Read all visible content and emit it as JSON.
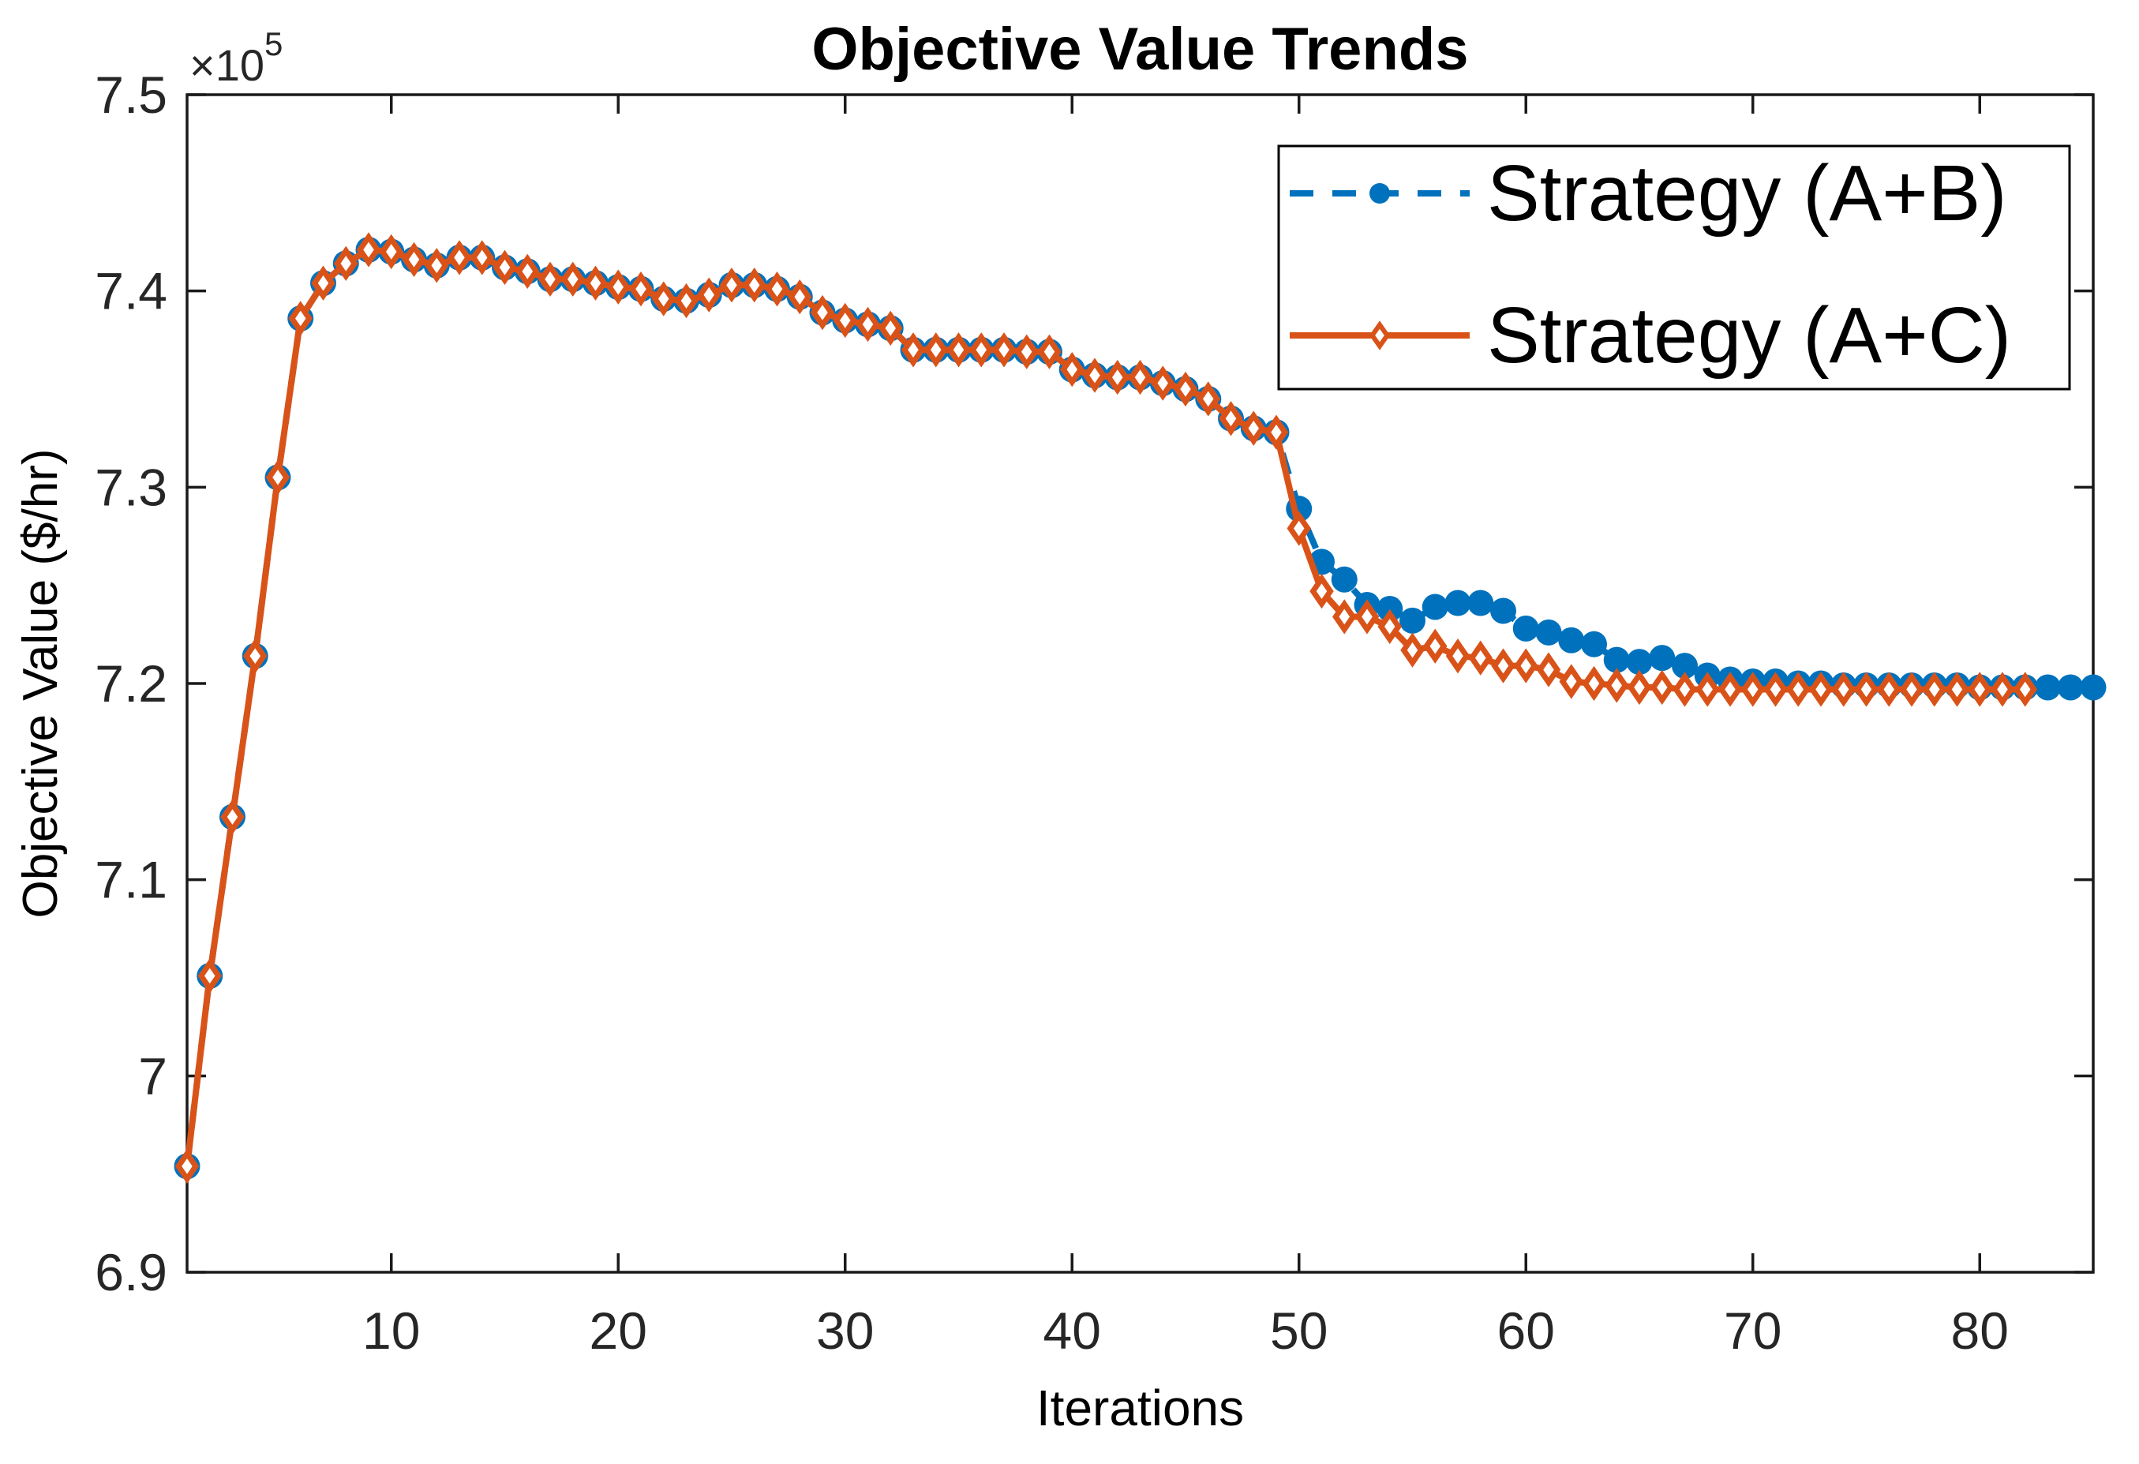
{
  "chart_data": {
    "type": "line",
    "title": "Objective Value Trends",
    "xlabel": "Iterations",
    "ylabel": "Objective Value ($/hr)",
    "axis_offset_label": {
      "base": "×10",
      "exponent": "5"
    },
    "xlim": [
      1,
      85
    ],
    "ylim": [
      690000,
      750000
    ],
    "xticks": [
      10,
      20,
      30,
      40,
      50,
      60,
      70,
      80
    ],
    "xtick_labels": [
      "10",
      "20",
      "30",
      "40",
      "50",
      "60",
      "70",
      "80"
    ],
    "ytick_values": [
      690000,
      700000,
      710000,
      720000,
      730000,
      740000,
      750000
    ],
    "ytick_labels": [
      "6.9",
      "7",
      "7.1",
      "7.2",
      "7.3",
      "7.4",
      "7.5"
    ],
    "grid": false,
    "legend_position": "northeast",
    "axis_color": "#1a1a1a",
    "tick_text_color": "#262626",
    "text_color": "#000000",
    "background_color": "#ffffff",
    "series": [
      {
        "name": "Strategy (A+B)",
        "color": "#0072BD",
        "line_style": "dashed",
        "marker": "circle-filled",
        "x_start": 1,
        "x_step": 1,
        "values": [
          695400,
          705100,
          713200,
          721400,
          730500,
          738600,
          740400,
          741400,
          742100,
          742000,
          741600,
          741300,
          741700,
          741700,
          741200,
          741000,
          740600,
          740600,
          740400,
          740200,
          740100,
          739600,
          739500,
          739800,
          740300,
          740300,
          740100,
          739700,
          738900,
          738500,
          738300,
          738100,
          737000,
          737000,
          737000,
          737000,
          737000,
          736900,
          736900,
          736000,
          735700,
          735600,
          735600,
          735300,
          735000,
          734500,
          733500,
          733000,
          732800,
          728900,
          726200,
          725300,
          724000,
          723800,
          723200,
          723900,
          724100,
          724100,
          723700,
          722800,
          722600,
          722200,
          722000,
          721200,
          721100,
          721300,
          720900,
          720400,
          720200,
          720100,
          720100,
          720000,
          720000,
          719900,
          719900,
          719900,
          719900,
          719900,
          719900,
          719800,
          719800,
          719800,
          719800,
          719800,
          719800
        ]
      },
      {
        "name": "Strategy (A+C)",
        "color": "#D95319",
        "line_style": "solid",
        "marker": "diamond-open",
        "x_start": 1,
        "x_step": 1,
        "values": [
          695400,
          705100,
          713200,
          721400,
          730500,
          738600,
          740400,
          741400,
          742100,
          742000,
          741600,
          741300,
          741700,
          741700,
          741200,
          741000,
          740600,
          740600,
          740400,
          740200,
          740100,
          739600,
          739500,
          739800,
          740300,
          740300,
          740100,
          739700,
          738900,
          738500,
          738300,
          738100,
          737000,
          737000,
          737000,
          737000,
          737000,
          736900,
          736900,
          736000,
          735700,
          735600,
          735600,
          735300,
          735000,
          734500,
          733500,
          733000,
          732800,
          727900,
          724700,
          723400,
          723400,
          722900,
          721700,
          721900,
          721400,
          721300,
          720900,
          720900,
          720700,
          720100,
          720000,
          719900,
          719800,
          719800,
          719700,
          719700,
          719700,
          719700,
          719700,
          719700,
          719700,
          719700,
          719700,
          719700,
          719700,
          719700,
          719700,
          719700,
          719700,
          719700
        ]
      }
    ]
  }
}
